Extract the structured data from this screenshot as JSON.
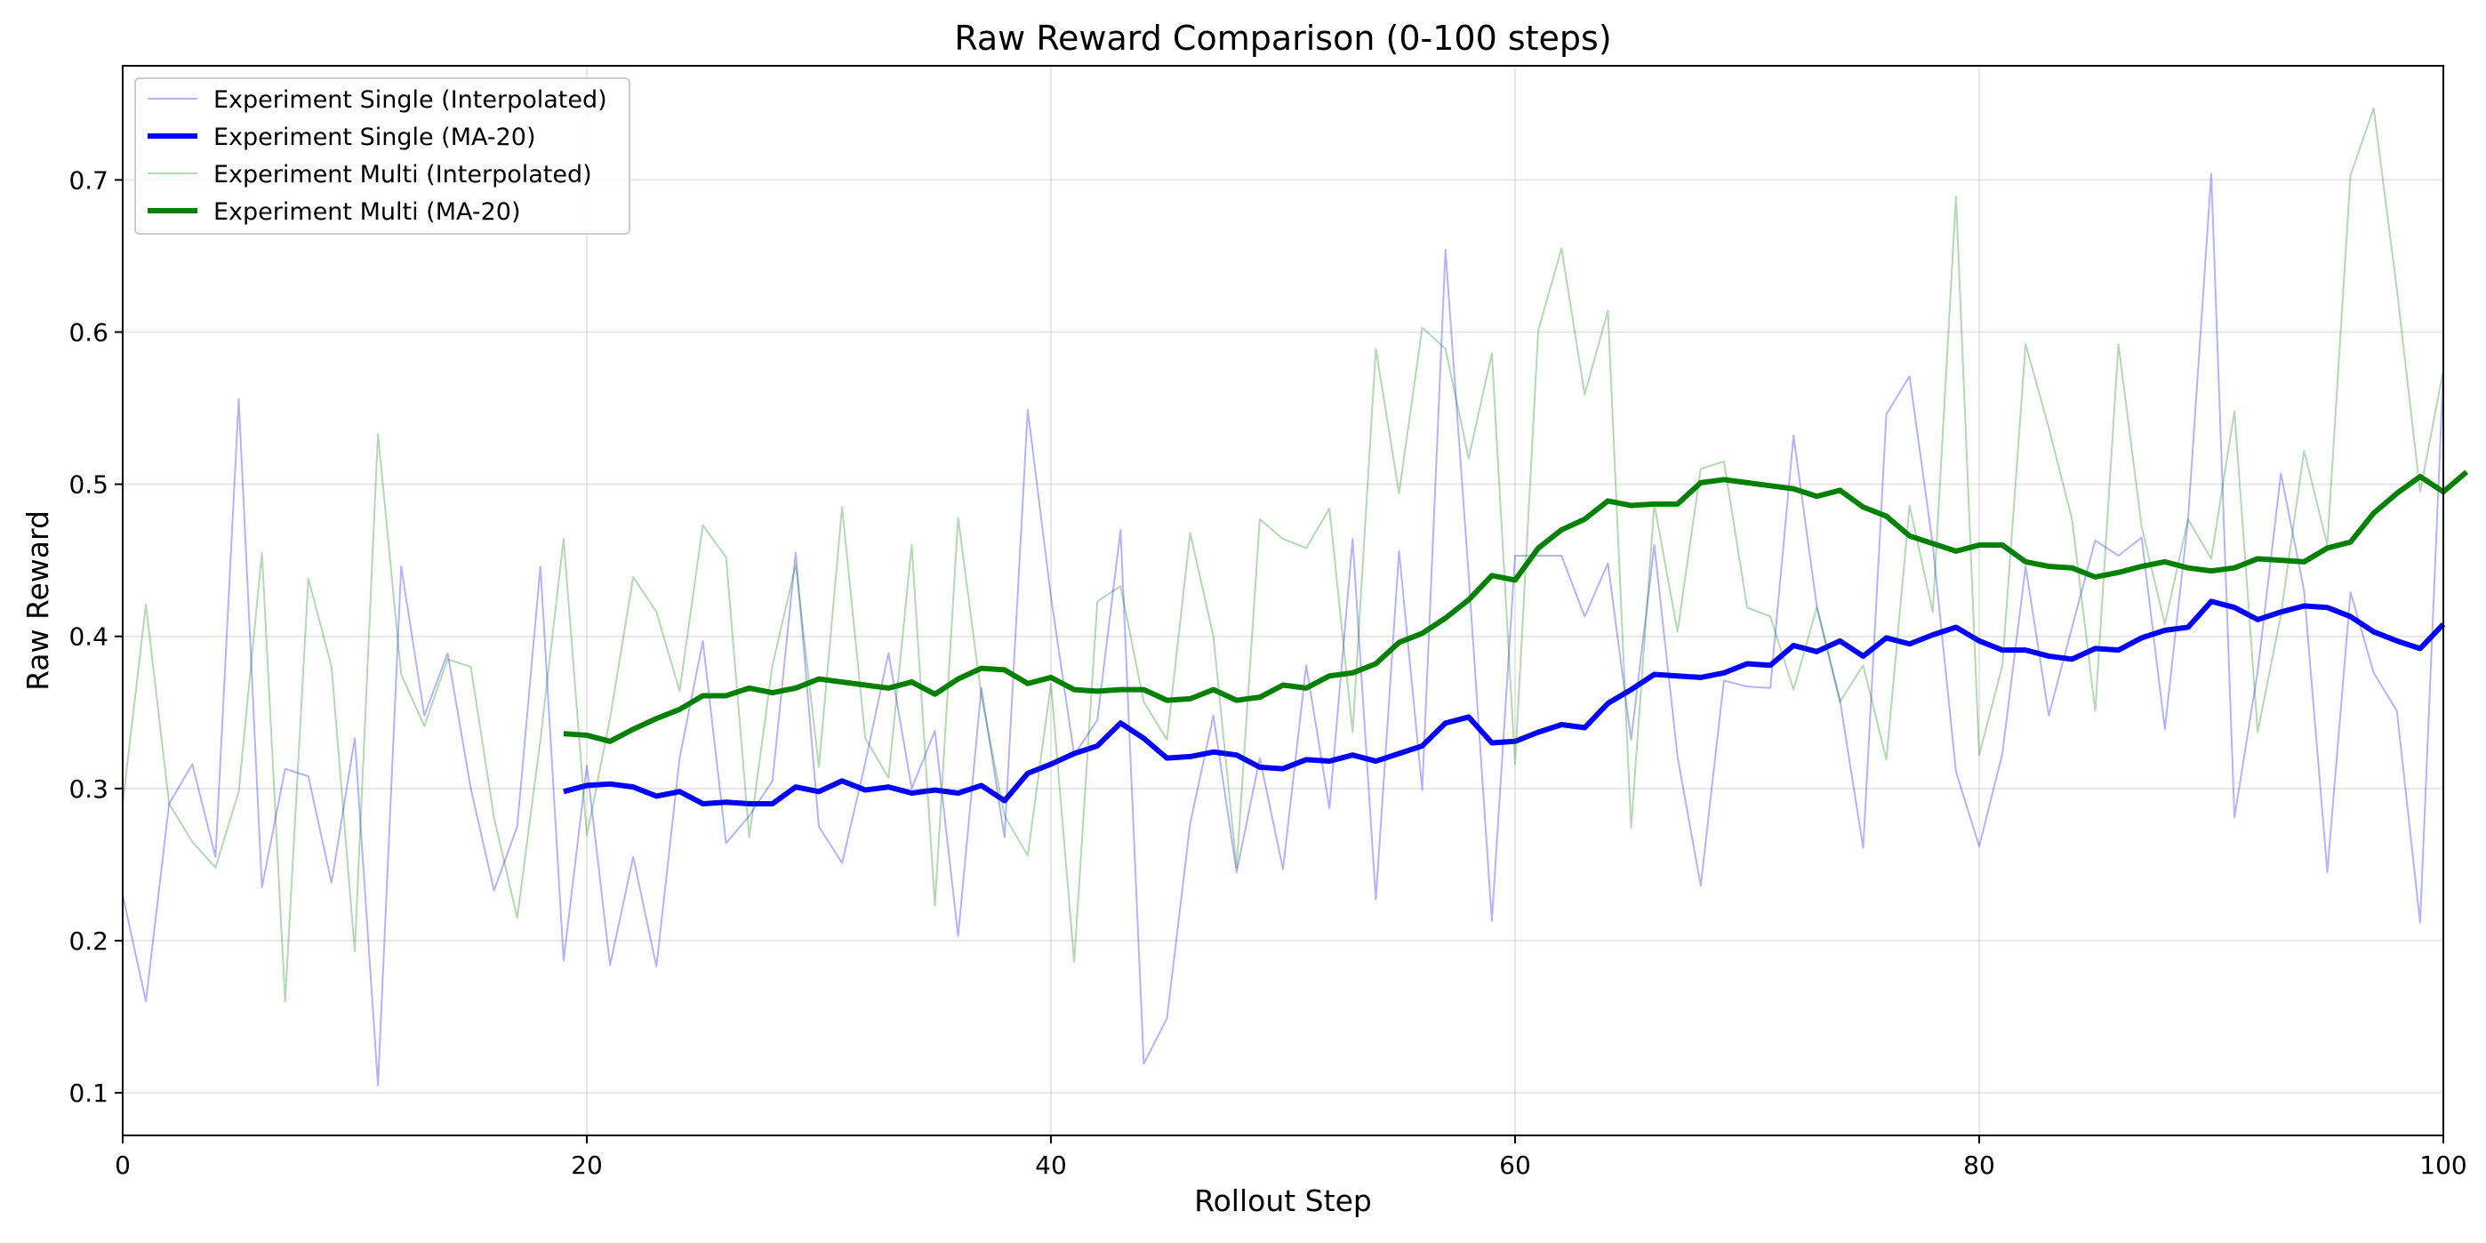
{
  "chart_data": {
    "type": "line",
    "title": "Raw Reward Comparison (0-100 steps)",
    "xlabel": "Rollout Step",
    "ylabel": "Raw Reward",
    "xlim": [
      0,
      100
    ],
    "ylim": [
      0.072,
      0.775
    ],
    "xticks": [
      0,
      20,
      40,
      60,
      80,
      100
    ],
    "yticks": [
      0.1,
      0.2,
      0.3,
      0.4,
      0.5,
      0.6,
      0.7
    ],
    "grid": true,
    "legend_position": "top-left",
    "series": [
      {
        "name": "Experiment Single (Interpolated)",
        "color": "#0000ff",
        "style": "thin",
        "x_start": 0,
        "values": [
          0.23,
          0.16,
          0.29,
          0.316,
          0.255,
          0.556,
          0.235,
          0.313,
          0.308,
          0.238,
          0.333,
          0.105,
          0.446,
          0.348,
          0.389,
          0.3,
          0.233,
          0.275,
          0.446,
          0.187,
          0.315,
          0.184,
          0.255,
          0.183,
          0.32,
          0.397,
          0.264,
          0.282,
          0.305,
          0.455,
          0.275,
          0.251,
          0.317,
          0.389,
          0.3,
          0.338,
          0.203,
          0.366,
          0.268,
          0.549,
          0.426,
          0.322,
          0.345,
          0.47,
          0.119,
          0.149,
          0.277,
          0.348,
          0.245,
          0.32,
          0.247,
          0.381,
          0.287,
          0.464,
          0.227,
          0.456,
          0.299,
          0.654,
          0.44,
          0.213,
          0.453,
          0.453,
          0.453,
          0.413,
          0.448,
          0.332,
          0.46,
          0.321,
          0.236,
          0.371,
          0.367,
          0.366,
          0.532,
          0.42,
          0.358,
          0.261,
          0.546,
          0.571,
          0.46,
          0.311,
          0.262,
          0.323,
          0.446,
          0.348,
          0.406,
          0.463,
          0.453,
          0.465,
          0.339,
          0.477,
          0.704,
          0.281,
          0.377,
          0.507,
          0.43,
          0.245,
          0.429,
          0.376,
          0.351,
          0.212,
          0.575
        ]
      },
      {
        "name": "Experiment Single (MA-20)",
        "color": "#0000ff",
        "style": "thick",
        "x_start": 19,
        "values": [
          0.298,
          0.302,
          0.303,
          0.301,
          0.295,
          0.298,
          0.29,
          0.291,
          0.29,
          0.29,
          0.301,
          0.298,
          0.305,
          0.299,
          0.301,
          0.297,
          0.299,
          0.297,
          0.302,
          0.292,
          0.31,
          0.316,
          0.323,
          0.328,
          0.343,
          0.333,
          0.32,
          0.321,
          0.324,
          0.322,
          0.314,
          0.313,
          0.319,
          0.318,
          0.322,
          0.318,
          0.323,
          0.328,
          0.343,
          0.347,
          0.33,
          0.331,
          0.337,
          0.342,
          0.34,
          0.356,
          0.365,
          0.375,
          0.374,
          0.373,
          0.376,
          0.382,
          0.381,
          0.394,
          0.39,
          0.397,
          0.387,
          0.399,
          0.395,
          0.401,
          0.406,
          0.397,
          0.391,
          0.391,
          0.387,
          0.385,
          0.392,
          0.391,
          0.399,
          0.404,
          0.406,
          0.423,
          0.419,
          0.411,
          0.416,
          0.42,
          0.419,
          0.413,
          0.403,
          0.397,
          0.392,
          0.408
        ]
      },
      {
        "name": "Experiment Multi (Interpolated)",
        "color": "#008000",
        "style": "thin",
        "x_start": 0,
        "values": [
          0.29,
          0.421,
          0.29,
          0.265,
          0.248,
          0.298,
          0.455,
          0.16,
          0.438,
          0.38,
          0.193,
          0.533,
          0.375,
          0.341,
          0.385,
          0.38,
          0.281,
          0.215,
          0.332,
          0.464,
          0.269,
          0.346,
          0.439,
          0.416,
          0.364,
          0.473,
          0.452,
          0.268,
          0.381,
          0.447,
          0.314,
          0.485,
          0.333,
          0.307,
          0.46,
          0.223,
          0.478,
          0.361,
          0.282,
          0.256,
          0.369,
          0.186,
          0.423,
          0.433,
          0.357,
          0.332,
          0.468,
          0.4,
          0.248,
          0.477,
          0.464,
          0.458,
          0.484,
          0.337,
          0.589,
          0.494,
          0.603,
          0.589,
          0.517,
          0.586,
          0.316,
          0.601,
          0.655,
          0.559,
          0.614,
          0.274,
          0.487,
          0.403,
          0.51,
          0.515,
          0.419,
          0.413,
          0.365,
          0.419,
          0.357,
          0.381,
          0.319,
          0.486,
          0.416,
          0.689,
          0.322,
          0.381,
          0.592,
          0.537,
          0.477,
          0.351,
          0.592,
          0.472,
          0.408,
          0.477,
          0.451,
          0.548,
          0.337,
          0.414,
          0.522,
          0.46,
          0.703,
          0.747,
          0.628,
          0.495,
          0.575
        ]
      },
      {
        "name": "Experiment Multi (MA-20)",
        "color": "#008000",
        "style": "thick",
        "x_start": 19,
        "values": [
          0.336,
          0.335,
          0.331,
          0.339,
          0.346,
          0.352,
          0.361,
          0.361,
          0.366,
          0.363,
          0.366,
          0.372,
          0.37,
          0.368,
          0.366,
          0.37,
          0.362,
          0.372,
          0.379,
          0.378,
          0.369,
          0.373,
          0.365,
          0.364,
          0.365,
          0.365,
          0.358,
          0.359,
          0.365,
          0.358,
          0.36,
          0.368,
          0.366,
          0.374,
          0.376,
          0.382,
          0.396,
          0.402,
          0.412,
          0.424,
          0.44,
          0.437,
          0.458,
          0.47,
          0.477,
          0.489,
          0.486,
          0.487,
          0.487,
          0.501,
          0.503,
          0.501,
          0.499,
          0.497,
          0.492,
          0.496,
          0.485,
          0.479,
          0.466,
          0.461,
          0.456,
          0.46,
          0.46,
          0.449,
          0.446,
          0.445,
          0.439,
          0.442,
          0.446,
          0.449,
          0.445,
          0.443,
          0.445,
          0.451,
          0.45,
          0.449,
          0.458,
          0.462,
          0.481,
          0.494,
          0.505,
          0.495,
          0.508
        ]
      }
    ]
  }
}
